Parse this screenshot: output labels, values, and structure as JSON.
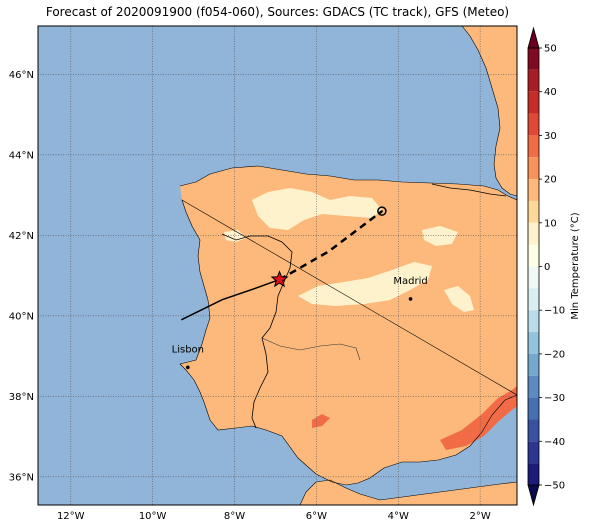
{
  "title": "Forecast of 2020091900 (f054-060), Sources: GDACS (TC track), GFS (Meteo)",
  "map": {
    "lon_range": [
      -12.8,
      -1.1
    ],
    "lat_range": [
      35.3,
      47.2
    ],
    "lon_ticks": [
      {
        "value": -12,
        "label": "12°W"
      },
      {
        "value": -10,
        "label": "10°W"
      },
      {
        "value": -8,
        "label": "8°W"
      },
      {
        "value": -6,
        "label": "6°W"
      },
      {
        "value": -4,
        "label": "4°W"
      },
      {
        "value": -2,
        "label": "2°W"
      }
    ],
    "lat_ticks": [
      {
        "value": 36,
        "label": "36°N"
      },
      {
        "value": 38,
        "label": "38°N"
      },
      {
        "value": 40,
        "label": "40°N"
      },
      {
        "value": 42,
        "label": "42°N"
      },
      {
        "value": 44,
        "label": "44°N"
      },
      {
        "value": 46,
        "label": "46°N"
      }
    ],
    "colors": {
      "ocean": "#91b4d9",
      "land": "#fdb97b",
      "cool": "#fef2cc",
      "warm": "#f16c46",
      "grid": "#555555"
    },
    "cities": [
      {
        "name": "Madrid",
        "lon": -3.7,
        "lat": 40.42
      },
      {
        "name": "Lisbon",
        "lon": -9.14,
        "lat": 38.72
      }
    ],
    "track_past": [
      [
        -9.3,
        39.9
      ],
      [
        -8.3,
        40.4
      ],
      [
        -7.5,
        40.68
      ],
      [
        -6.9,
        40.9
      ]
    ],
    "track_forecast": [
      [
        -6.9,
        40.9
      ],
      [
        -5.7,
        41.6
      ],
      [
        -4.4,
        42.6
      ]
    ],
    "storm_position": {
      "lon": -6.9,
      "lat": 40.9
    },
    "forecast_end": {
      "lon": -4.4,
      "lat": 42.6
    }
  },
  "colorbar": {
    "label": "Min Temperature (°C)",
    "ticks": [
      {
        "value": 50,
        "label": "50"
      },
      {
        "value": 40,
        "label": "40"
      },
      {
        "value": 30,
        "label": "30"
      },
      {
        "value": 20,
        "label": "20"
      },
      {
        "value": 10,
        "label": "10"
      },
      {
        "value": 0,
        "label": "0"
      },
      {
        "value": -10,
        "label": "−10"
      },
      {
        "value": -20,
        "label": "−20"
      },
      {
        "value": -30,
        "label": "−30"
      },
      {
        "value": -40,
        "label": "−40"
      },
      {
        "value": -50,
        "label": "−50"
      }
    ],
    "bands": [
      {
        "from": 45,
        "to": 50,
        "color": "#7f0a21"
      },
      {
        "from": 40,
        "to": 45,
        "color": "#a91e26"
      },
      {
        "from": 35,
        "to": 40,
        "color": "#c62b29"
      },
      {
        "from": 30,
        "to": 35,
        "color": "#df4936"
      },
      {
        "from": 25,
        "to": 30,
        "color": "#f16c46"
      },
      {
        "from": 20,
        "to": 25,
        "color": "#f8935a"
      },
      {
        "from": 15,
        "to": 20,
        "color": "#fdb97b"
      },
      {
        "from": 10,
        "to": 15,
        "color": "#fed899"
      },
      {
        "from": 5,
        "to": 10,
        "color": "#fef2cc"
      },
      {
        "from": 0,
        "to": 5,
        "color": "#fefee6"
      },
      {
        "from": -5,
        "to": 0,
        "color": "#eff8f5"
      },
      {
        "from": -10,
        "to": -5,
        "color": "#d9eef0"
      },
      {
        "from": -15,
        "to": -10,
        "color": "#b9dcea"
      },
      {
        "from": -20,
        "to": -15,
        "color": "#91c3de"
      },
      {
        "from": -25,
        "to": -20,
        "color": "#74a9cf"
      },
      {
        "from": -30,
        "to": -25,
        "color": "#5b8bc0"
      },
      {
        "from": -35,
        "to": -30,
        "color": "#4770b1"
      },
      {
        "from": -40,
        "to": -35,
        "color": "#3951a1"
      },
      {
        "from": -45,
        "to": -40,
        "color": "#2c3590"
      },
      {
        "from": -50,
        "to": -45,
        "color": "#1c1b7a"
      }
    ],
    "over_color": "#67001f",
    "under_color": "#0a0a4e"
  }
}
